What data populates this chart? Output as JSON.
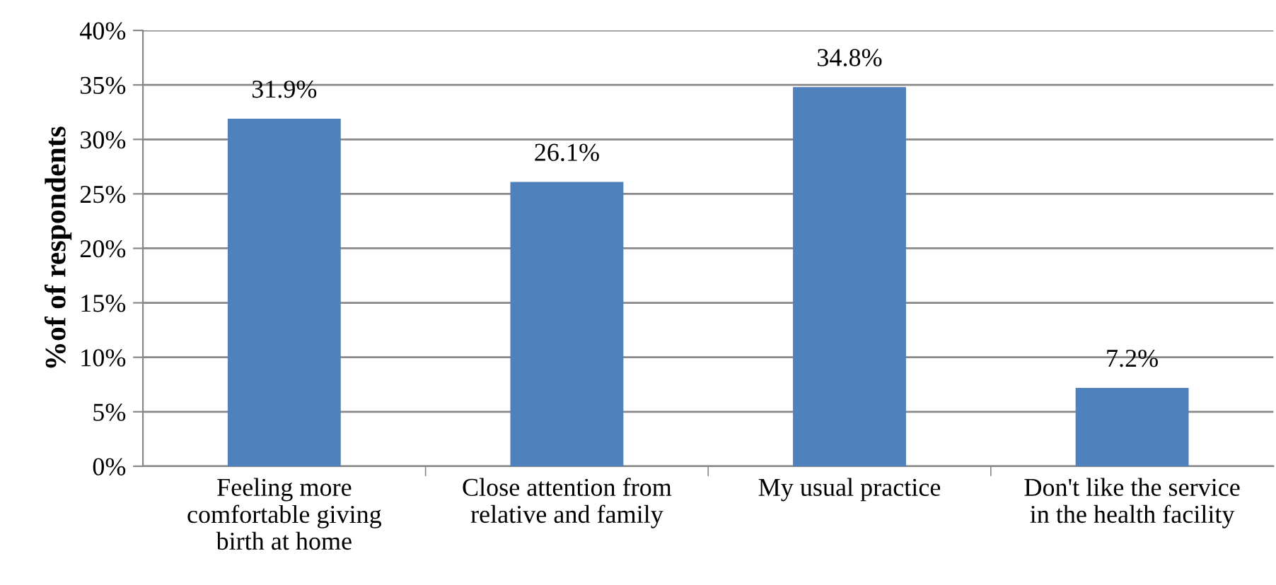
{
  "chart_data": {
    "type": "bar",
    "ylabel": "%of of respondents",
    "categories": [
      "Feeling more\ncomfortable giving\nbirth at home",
      "Close attention from\nrelative and family",
      "My usual practice",
      "Don't like the service\nin the health facility"
    ],
    "values": [
      31.9,
      26.1,
      34.8,
      7.2
    ],
    "color": "#4f81bd",
    "value_labels": [
      "31.9%",
      "26.1%",
      "34.8%",
      "7.2%"
    ],
    "ylim": [
      0,
      40
    ],
    "yticks": [
      {
        "value": 0,
        "label": "0%"
      },
      {
        "value": 5,
        "label": "5%"
      },
      {
        "value": 10,
        "label": "10%"
      },
      {
        "value": 15,
        "label": "15%"
      },
      {
        "value": 20,
        "label": "20%"
      },
      {
        "value": 25,
        "label": "25%"
      },
      {
        "value": 30,
        "label": "30%"
      },
      {
        "value": 35,
        "label": "35%"
      },
      {
        "value": 40,
        "label": "40%"
      }
    ],
    "grid": "y",
    "legend": false
  }
}
